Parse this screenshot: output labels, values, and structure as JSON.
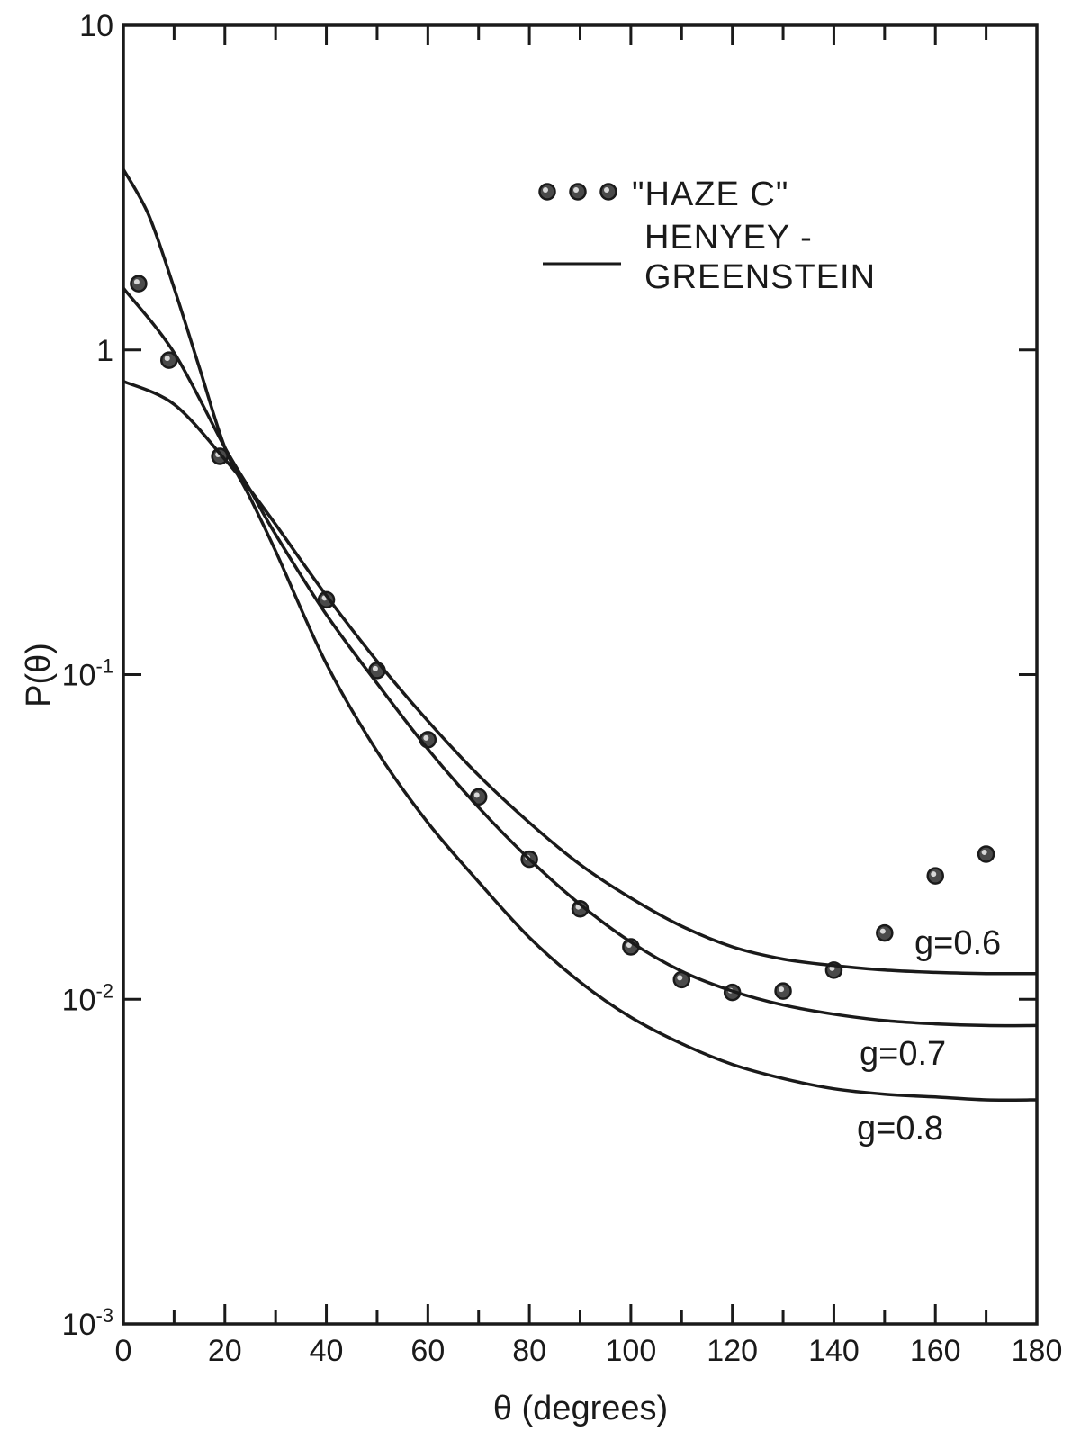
{
  "chart_data": {
    "type": "scatter",
    "title": "",
    "xlabel": "θ (degrees)",
    "ylabel": "P(θ)",
    "xlim": [
      0,
      180
    ],
    "ylim": [
      0.001,
      10
    ],
    "y_scale": "log",
    "grid": false,
    "x_ticks": [
      0,
      20,
      40,
      60,
      80,
      100,
      120,
      140,
      160,
      180
    ],
    "x_tick_labels": [
      "0",
      "20",
      "40",
      "60",
      "80",
      "100",
      "120",
      "140",
      "160",
      "180"
    ],
    "y_ticks": [
      0.001,
      0.01,
      0.1,
      1,
      10
    ],
    "y_tick_labels": [
      {
        "base": "10",
        "exp": "-3"
      },
      {
        "base": "10",
        "exp": "-2"
      },
      {
        "base": "10",
        "exp": "-1"
      },
      {
        "base": "1",
        "exp": ""
      },
      {
        "base": "10",
        "exp": ""
      }
    ],
    "legend": {
      "placement": "top-right",
      "entries": [
        {
          "marker": "circle",
          "lines": [
            "\"HAZE C\""
          ]
        },
        {
          "marker": "line",
          "lines": [
            "HENYEY -",
            "GREENSTEIN"
          ]
        }
      ]
    },
    "series": [
      {
        "name": "\"HAZE C\"",
        "kind": "points",
        "x": [
          3,
          9,
          19,
          40,
          50,
          60,
          70,
          80,
          90,
          100,
          110,
          120,
          130,
          140,
          150,
          160,
          170
        ],
        "y": [
          1.6,
          0.93,
          0.47,
          0.17,
          0.103,
          0.063,
          0.042,
          0.027,
          0.019,
          0.0145,
          0.0115,
          0.0105,
          0.0106,
          0.0123,
          0.016,
          0.024,
          0.028
        ]
      },
      {
        "name": "HENYEY-GREENSTEIN",
        "kind": "line",
        "label": "g=0.6",
        "x": [
          0,
          10,
          20,
          25,
          30,
          40,
          50,
          60,
          70,
          80,
          90,
          100,
          110,
          120,
          130,
          140,
          150,
          160,
          170,
          180
        ],
        "y": [
          0.8,
          0.68,
          0.46,
          0.37,
          0.29,
          0.175,
          0.11,
          0.072,
          0.049,
          0.035,
          0.026,
          0.0205,
          0.0168,
          0.0145,
          0.0133,
          0.0127,
          0.0123,
          0.0121,
          0.012,
          0.012
        ]
      },
      {
        "name": "HENYEY-GREENSTEIN",
        "kind": "line",
        "label": "g=0.7",
        "x": [
          0,
          10,
          20,
          25,
          30,
          40,
          50,
          60,
          70,
          80,
          90,
          100,
          110,
          120,
          130,
          140,
          150,
          160,
          170,
          180
        ],
        "y": [
          1.55,
          0.98,
          0.5,
          0.37,
          0.27,
          0.153,
          0.094,
          0.059,
          0.039,
          0.027,
          0.0196,
          0.015,
          0.0122,
          0.0106,
          0.0096,
          0.009,
          0.0086,
          0.0084,
          0.0083,
          0.0083
        ]
      },
      {
        "name": "HENYEY-GREENSTEIN",
        "kind": "line",
        "label": "g=0.8",
        "x": [
          0,
          5,
          10,
          15,
          20,
          25,
          30,
          40,
          50,
          60,
          70,
          80,
          90,
          100,
          110,
          120,
          130,
          140,
          150,
          160,
          170,
          180
        ],
        "y": [
          3.6,
          2.6,
          1.55,
          0.88,
          0.5,
          0.35,
          0.24,
          0.108,
          0.058,
          0.035,
          0.023,
          0.0155,
          0.0113,
          0.0088,
          0.0073,
          0.0063,
          0.0057,
          0.0053,
          0.0051,
          0.005,
          0.0049,
          0.0049
        ]
      }
    ]
  }
}
